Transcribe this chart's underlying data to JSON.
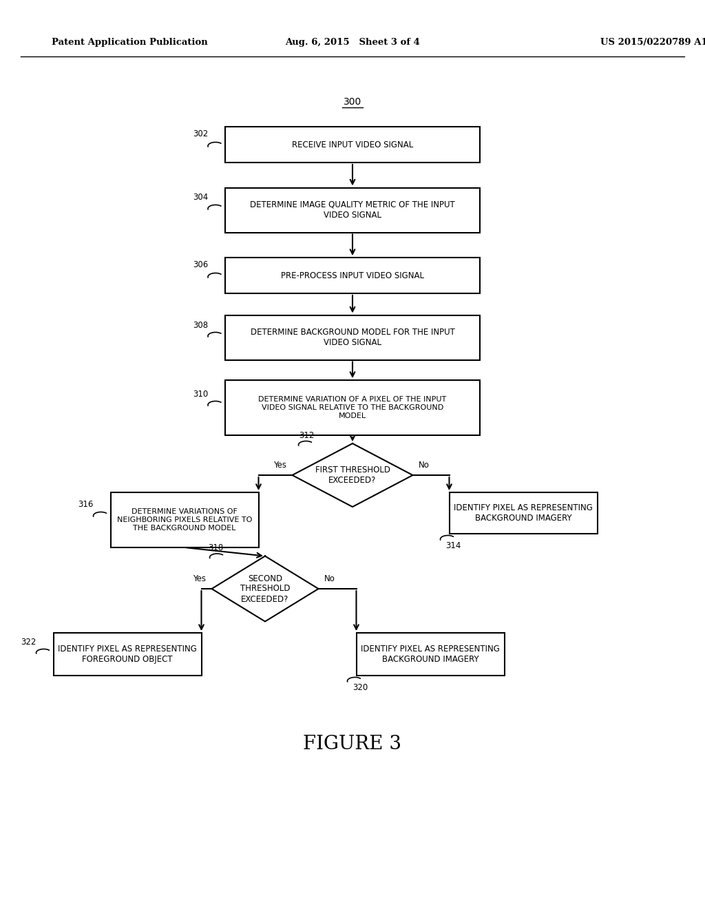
{
  "bg_color": "#ffffff",
  "header_left": "Patent Application Publication",
  "header_mid": "Aug. 6, 2015   Sheet 3 of 4",
  "header_right": "US 2015/0220789 A1",
  "figure_label": "FIGURE 3"
}
